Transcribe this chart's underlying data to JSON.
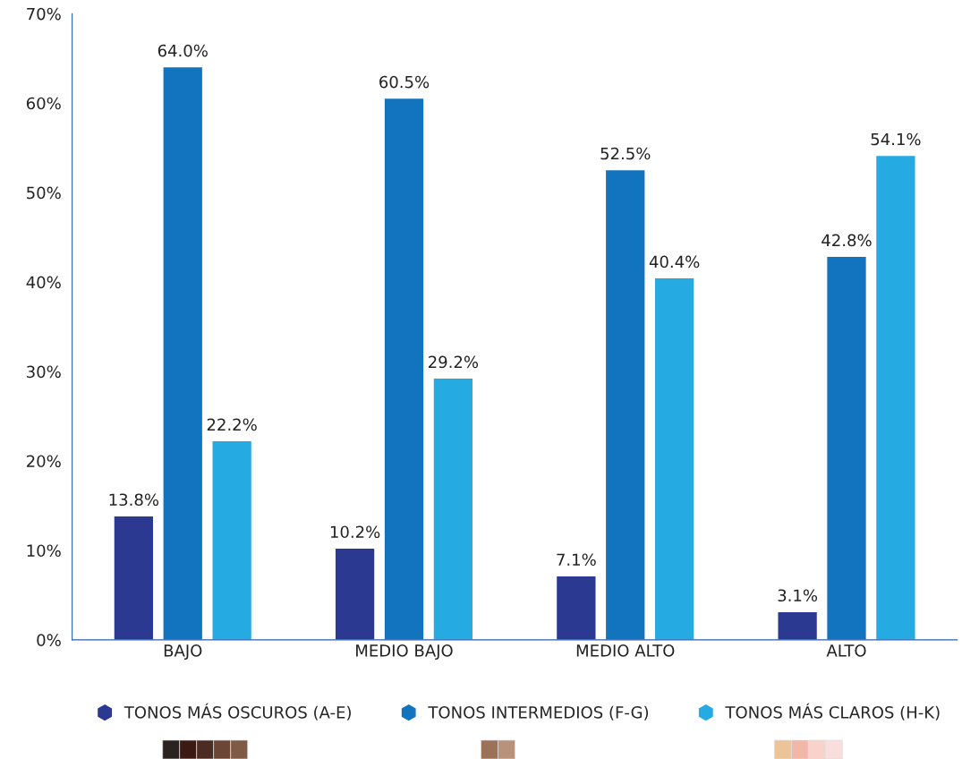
{
  "chart_data": {
    "type": "bar",
    "categories": [
      "BAJO",
      "MEDIO BAJO",
      "MEDIO ALTO",
      "ALTO"
    ],
    "series": [
      {
        "name": "TONOS MÁS OSCUROS (A-E)",
        "color": "#2b3990",
        "values": [
          13.8,
          10.2,
          7.1,
          3.1
        ],
        "value_labels": [
          "13.8%",
          "10.2%",
          "7.1%",
          "3.1%"
        ]
      },
      {
        "name": "TONOS INTERMEDIOS (F-G)",
        "color": "#1273be",
        "values": [
          64.0,
          60.5,
          52.5,
          42.8
        ],
        "value_labels": [
          "64.0%",
          "60.5%",
          "52.5%",
          "42.8%"
        ]
      },
      {
        "name": "TONOS MÁS CLAROS (H-K)",
        "color": "#25aae1",
        "values": [
          22.2,
          29.2,
          40.4,
          54.1
        ],
        "value_labels": [
          "22.2%",
          "29.2%",
          "40.4%",
          "54.1%"
        ]
      }
    ],
    "ylim": [
      0,
      70
    ],
    "yticks": [
      {
        "value": 0,
        "label": "0%"
      },
      {
        "value": 10,
        "label": "10%"
      },
      {
        "value": 20,
        "label": "20%"
      },
      {
        "value": 30,
        "label": "30%"
      },
      {
        "value": 40,
        "label": "40%"
      },
      {
        "value": 50,
        "label": "50%"
      },
      {
        "value": 60,
        "label": "60%"
      },
      {
        "value": 70,
        "label": "70%"
      }
    ],
    "grid": false,
    "legend": "bottom"
  }
}
